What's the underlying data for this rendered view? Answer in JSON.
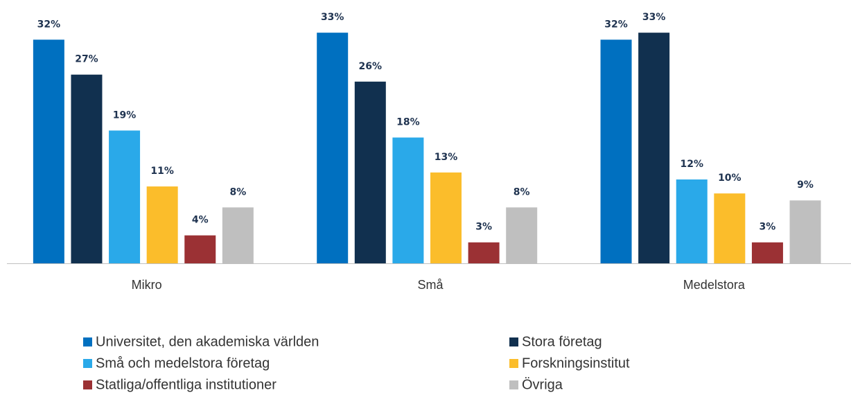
{
  "chart_data": {
    "type": "bar",
    "categories": [
      "Mikro",
      "Små",
      "Medelstora"
    ],
    "series": [
      {
        "name": "Universitet, den akademiska världen",
        "color": "#0070c0",
        "values": [
          32,
          33,
          32
        ],
        "value_labels": [
          "32%",
          "33%",
          "32%"
        ]
      },
      {
        "name": "Stora företag",
        "color": "#11304f",
        "values": [
          27,
          26,
          33
        ],
        "value_labels": [
          "27%",
          "26%",
          "33%"
        ]
      },
      {
        "name": "Små och medelstora företag",
        "color": "#2aa9e9",
        "values": [
          19,
          18,
          12
        ],
        "value_labels": [
          "19%",
          "18%",
          "12%"
        ]
      },
      {
        "name": "Forskningsinstitut",
        "color": "#fbbd2b",
        "values": [
          11,
          13,
          10
        ],
        "value_labels": [
          "11%",
          "13%",
          "10%"
        ]
      },
      {
        "name": "Statliga/offentliga institutioner",
        "color": "#9b3134",
        "values": [
          4,
          3,
          3
        ],
        "value_labels": [
          "4%",
          "3%",
          "3%"
        ]
      },
      {
        "name": "Övriga",
        "color": "#bfbfbf",
        "values": [
          8,
          8,
          9
        ],
        "value_labels": [
          "8%",
          "8%",
          "9%"
        ]
      }
    ],
    "ylim": [
      0,
      35
    ],
    "legend": "bottom"
  }
}
